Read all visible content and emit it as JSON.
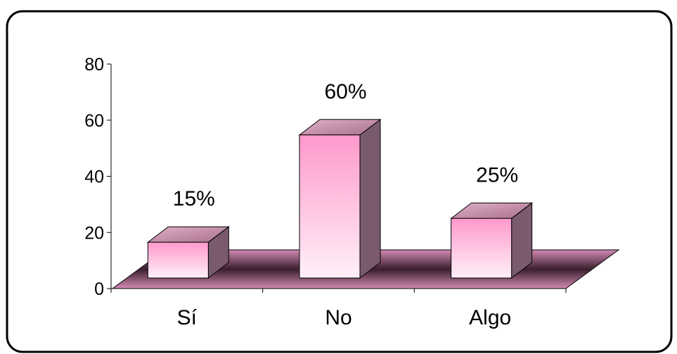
{
  "chart_data": {
    "type": "bar",
    "style": "3d",
    "categories": [
      "Sí",
      "No",
      "Algo"
    ],
    "values": [
      15,
      60,
      25
    ],
    "data_labels": [
      "15%",
      "60%",
      "25%"
    ],
    "ylim": [
      0,
      80
    ],
    "yticks": [
      "0",
      "20",
      "40",
      "60",
      "80"
    ],
    "title": "",
    "xlabel": "",
    "ylabel": "",
    "legend": "none",
    "grid": false,
    "colors": {
      "bar_front_top": "#ff99cc",
      "bar_front_bottom": "#fff0f8",
      "bar_side": "#7a5a6e",
      "bar_top": "#c98fac",
      "floor_edge": "#d48ab4",
      "floor_center": "#3a1f2e",
      "frame": "#000000"
    }
  }
}
